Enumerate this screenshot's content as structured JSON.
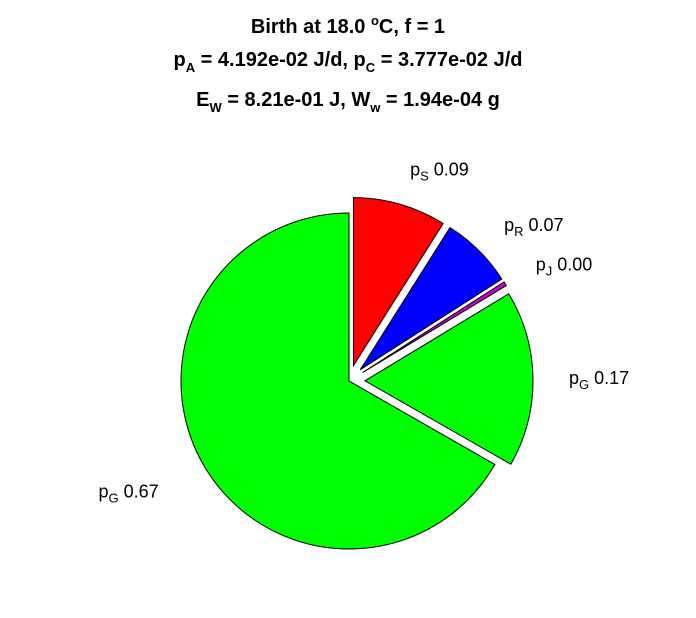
{
  "chart_data": {
    "type": "pie",
    "title": {
      "line1": {
        "text": "Birth at 18.0 ",
        "sup": "o",
        "after": "C, f = 1"
      },
      "line2": [
        {
          "base": "p",
          "sub": "A",
          "text": " = 4.192e-02 J/d, "
        },
        {
          "base": "p",
          "sub": "C",
          "text": " = 3.777e-02 J/d"
        }
      ],
      "line3": [
        {
          "base": "E",
          "sub": "W",
          "text": " = 8.21e-01 J, "
        },
        {
          "base": "W",
          "sub": "w",
          "text": " = 1.94e-04 g"
        }
      ]
    },
    "slices": [
      {
        "label_base": "p",
        "label_sub": "S",
        "value_text": "0.09",
        "value": 0.09,
        "color": "#ff0000",
        "exploded": true
      },
      {
        "label_base": "p",
        "label_sub": "R",
        "value_text": "0.07",
        "value": 0.07,
        "color": "#0000ff",
        "exploded": true
      },
      {
        "label_base": "p",
        "label_sub": "J",
        "value_text": "0.00",
        "value": 0.004,
        "color": "#cc00cc",
        "exploded": true
      },
      {
        "label_base": "p",
        "label_sub": "G",
        "value_text": "0.17",
        "value": 0.17,
        "color": "#00ff00",
        "exploded": true
      },
      {
        "label_base": "p",
        "label_sub": "G",
        "value_text": "0.67",
        "value": 0.67,
        "color": "#00ff00",
        "exploded": false
      }
    ],
    "start_angle_deg": 0,
    "direction": "clockwise",
    "legend": "none"
  }
}
